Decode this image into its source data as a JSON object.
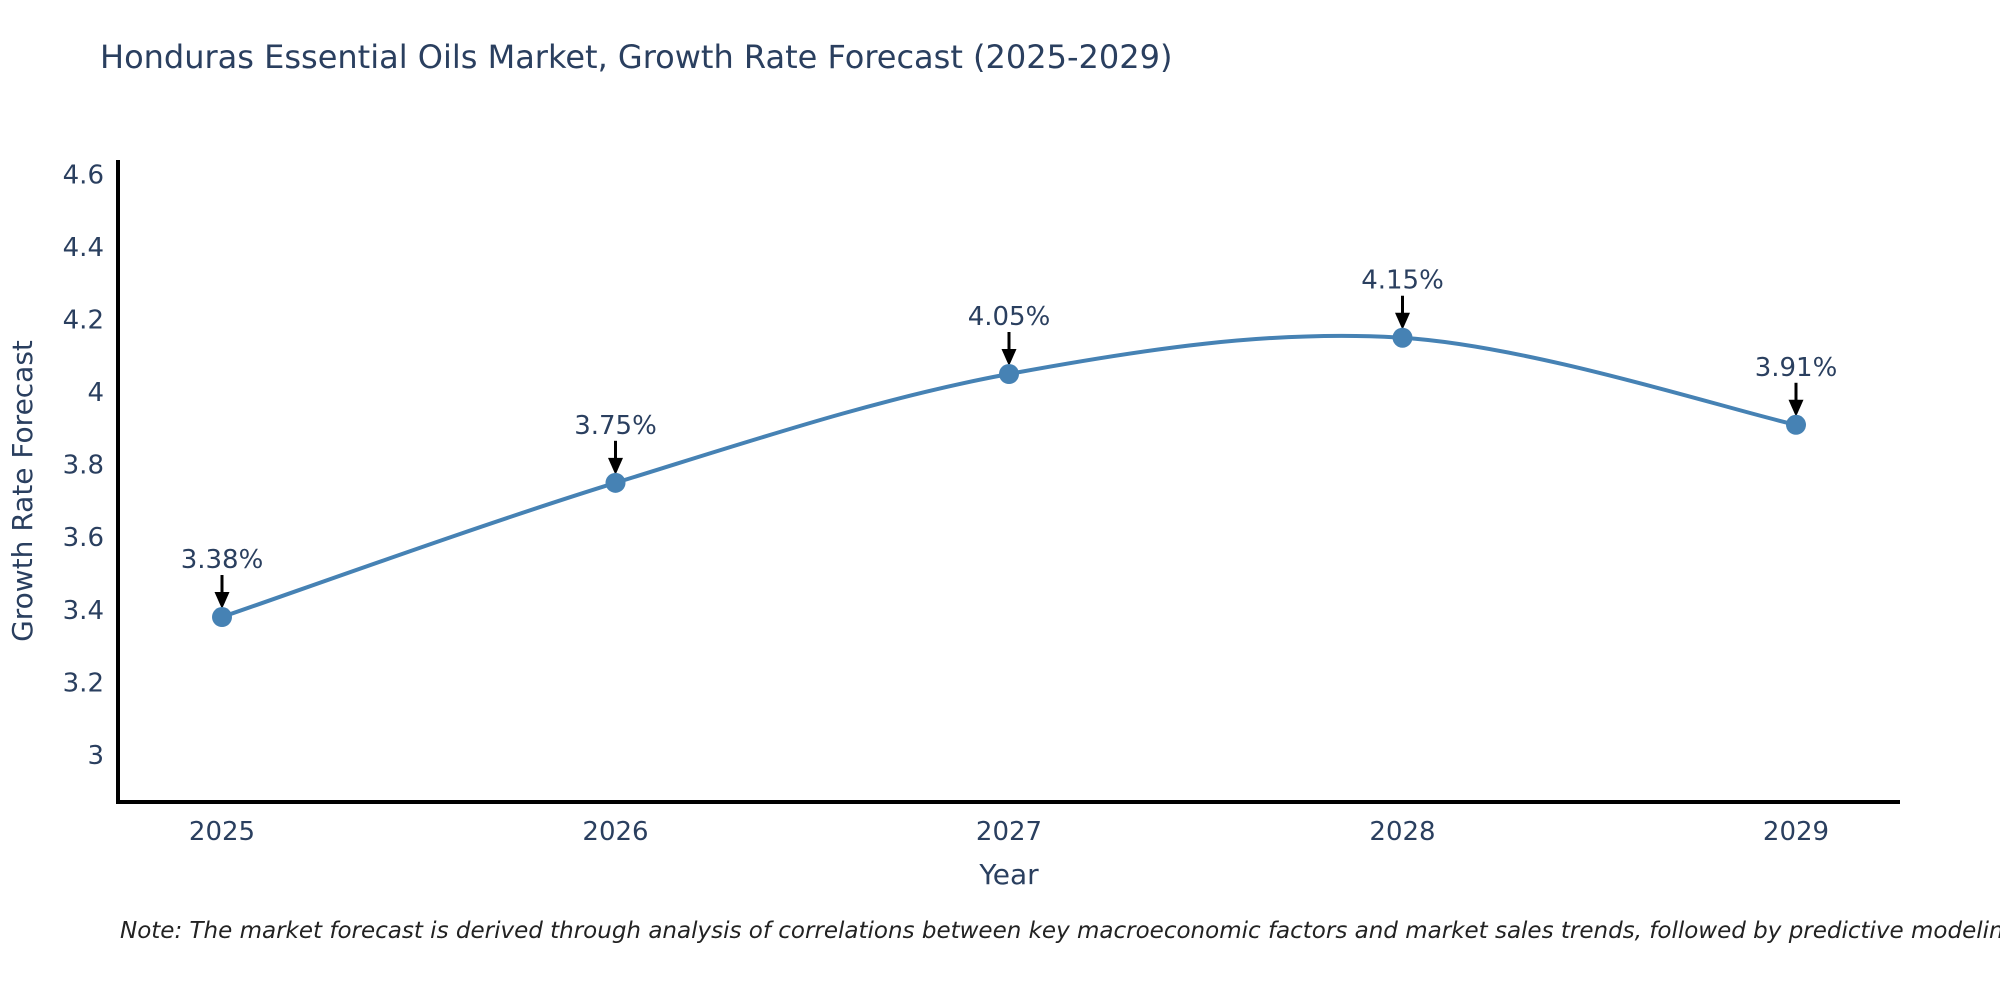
{
  "header": {
    "title": "Honduras Essential Oils Market, Growth Rate Forecast (2025-2029)"
  },
  "chart_data": {
    "type": "line",
    "title": "Honduras Essential Oils Market, Growth Rate Forecast (2025-2029)",
    "x": [
      "2025",
      "2026",
      "2027",
      "2028",
      "2029"
    ],
    "series": [
      {
        "name": "Growth Rate Forecast",
        "values": [
          3.38,
          3.75,
          4.05,
          4.15,
          3.91
        ],
        "labels": [
          "3.38%",
          "3.75%",
          "4.05%",
          "4.15%",
          "3.91%"
        ]
      }
    ],
    "xlabel": "Year",
    "ylabel": "Growth Rate Forecast",
    "ylim": [
      2.87,
      4.64
    ],
    "yticks": {
      "values": [
        3,
        3.2,
        3.4,
        3.6,
        3.8,
        4,
        4.2,
        4.4,
        4.6
      ],
      "labels": [
        "3",
        "3.2",
        "3.4",
        "3.6",
        "3.8",
        "4",
        "4.2",
        "4.4",
        "4.6"
      ]
    },
    "line_shape": "spline",
    "grid": false,
    "legend": "none",
    "annotations": "value labels with downward arrows above each point",
    "colors": {
      "line": "#4682b4",
      "marker": "#4682b4",
      "axis": "#000000",
      "text": "#2a3f5f",
      "arrow": "#000000",
      "note_text": "#222222",
      "background": "#ffffff"
    }
  },
  "footnote": {
    "text": "Note: The market forecast is derived through analysis of correlations between key macroeconomic factors and market sales trends, followed by predictive modeling to project future sales trends."
  }
}
